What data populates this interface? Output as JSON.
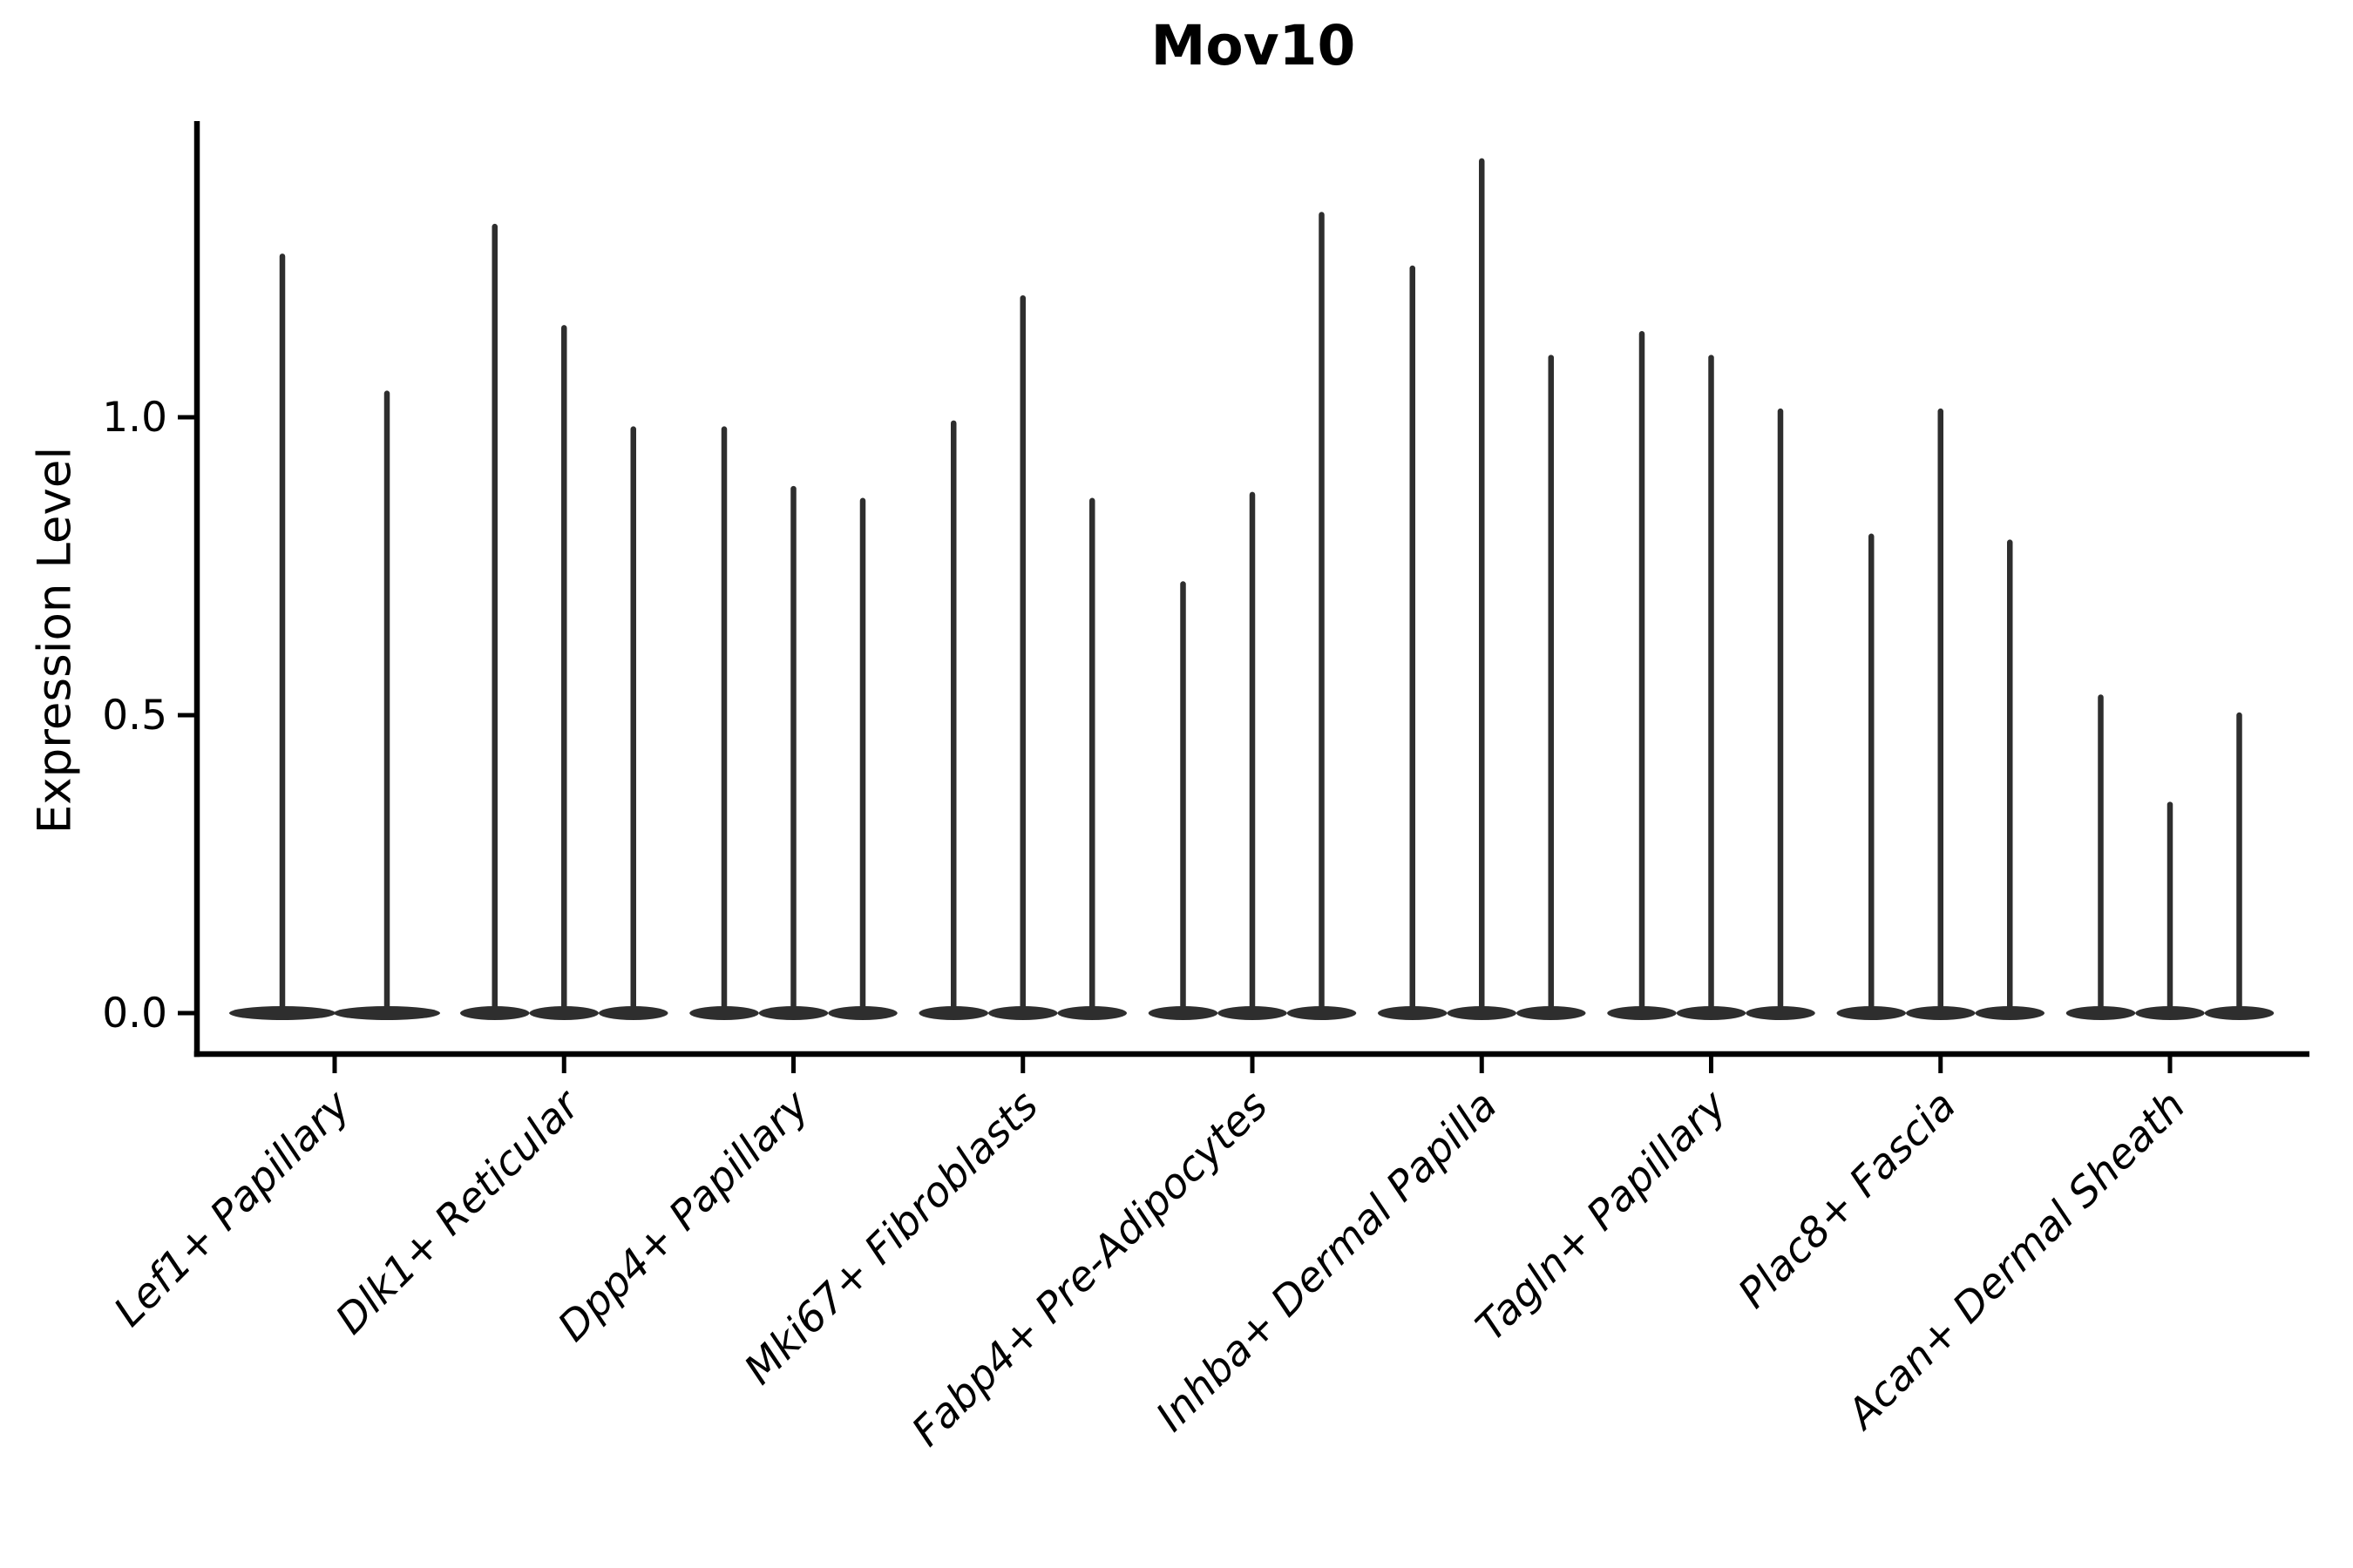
{
  "title": "Mov10",
  "colors": {
    "violin": "#2e2e2e",
    "axis": "#000000",
    "text": "#000000",
    "background": "#ffffff"
  },
  "chart_data": {
    "type": "violin",
    "title": "Mov10",
    "xlabel": "",
    "ylabel": "Expression Level",
    "ylim": [
      -0.07,
      1.5
    ],
    "grid": false,
    "legend": "none",
    "x_tick_rotation": 45,
    "yticks": [
      {
        "value": 0.0,
        "label": "0.0"
      },
      {
        "value": 0.5,
        "label": "0.5"
      },
      {
        "value": 1.0,
        "label": "1.0"
      }
    ],
    "categories": [
      "Lef1+ Papillary",
      "Dlk1+ Reticular",
      "Dpp4+ Papillary",
      "Mki67+ Fibroblasts",
      "Fabp4+ Pre-Adipocytes",
      "Inhba+ Dermal Papilla",
      "Tagln+ Papillary",
      "Plac8+ Fascia",
      "Acan+ Dermal Sheath"
    ],
    "groups": [
      {
        "label": "Lef1+ Papillary",
        "violin_max_values": [
          1.27,
          1.04
        ]
      },
      {
        "label": "Dlk1+ Reticular",
        "violin_max_values": [
          1.32,
          1.15,
          0.98
        ]
      },
      {
        "label": "Dpp4+ Papillary",
        "violin_max_values": [
          0.98,
          0.88,
          0.86
        ]
      },
      {
        "label": "Mki67+ Fibroblasts",
        "violin_max_values": [
          0.99,
          1.2,
          0.86
        ]
      },
      {
        "label": "Fabp4+ Pre-Adipocytes",
        "violin_max_values": [
          0.72,
          0.87,
          1.34
        ]
      },
      {
        "label": "Inhba+ Dermal Papilla",
        "violin_max_values": [
          1.25,
          1.43,
          1.1
        ]
      },
      {
        "label": "Tagln+ Papillary",
        "violin_max_values": [
          1.14,
          1.1,
          1.01
        ]
      },
      {
        "label": "Plac8+ Fascia",
        "violin_max_values": [
          0.8,
          1.01,
          0.79
        ]
      },
      {
        "label": "Acan+ Dermal Sheath",
        "violin_max_values": [
          0.53,
          0.35,
          0.5
        ]
      }
    ],
    "violin_shape_note": "Each violin is a thin vertical spike rising from a flat dense mass at expression level 0"
  }
}
